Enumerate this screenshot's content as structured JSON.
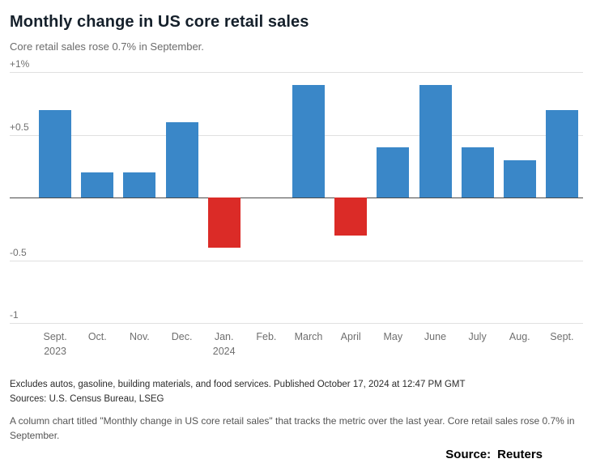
{
  "header": {
    "title": "Monthly change in US core retail sales",
    "subtitle": "Core retail sales rose 0.7% in September."
  },
  "chart_data": {
    "type": "bar",
    "title": "Monthly change in US core retail sales",
    "unit": "%",
    "categories": [
      "Sept.",
      "Oct.",
      "Nov.",
      "Dec.",
      "Jan.",
      "Feb.",
      "March",
      "April",
      "May",
      "June",
      "July",
      "Aug.",
      "Sept."
    ],
    "category_sublabels": [
      "2023",
      "",
      "",
      "",
      "2024",
      "",
      "",
      "",
      "",
      "",
      "",
      "",
      ""
    ],
    "values": [
      0.7,
      0.2,
      0.2,
      0.6,
      -0.4,
      0.0,
      0.9,
      -0.3,
      0.4,
      0.9,
      0.4,
      0.3,
      0.7
    ],
    "ylim": [
      -1,
      1
    ],
    "yticks": [
      {
        "value": 1,
        "label": "+1%"
      },
      {
        "value": 0.5,
        "label": "+0.5"
      },
      {
        "value": -0.5,
        "label": "-0.5"
      },
      {
        "value": -1,
        "label": "-1"
      }
    ],
    "grid": true,
    "legend": "none",
    "positive_color": "#3a87c8",
    "negative_color": "#db2b27",
    "zero_line_color": "#4a4a4a"
  },
  "footer": {
    "note": "Excludes autos, gasoline, building materials, and food services. Published October 17, 2024 at 12:47 PM GMT",
    "sources": "Sources: U.S. Census Bureau, LSEG",
    "description": "A column chart titled \"Monthly change in US core retail sales\" that tracks the metric over the last year. Core retail sales rose 0.7% in September.",
    "source_label": "Source:",
    "source_name": "Reuters"
  }
}
